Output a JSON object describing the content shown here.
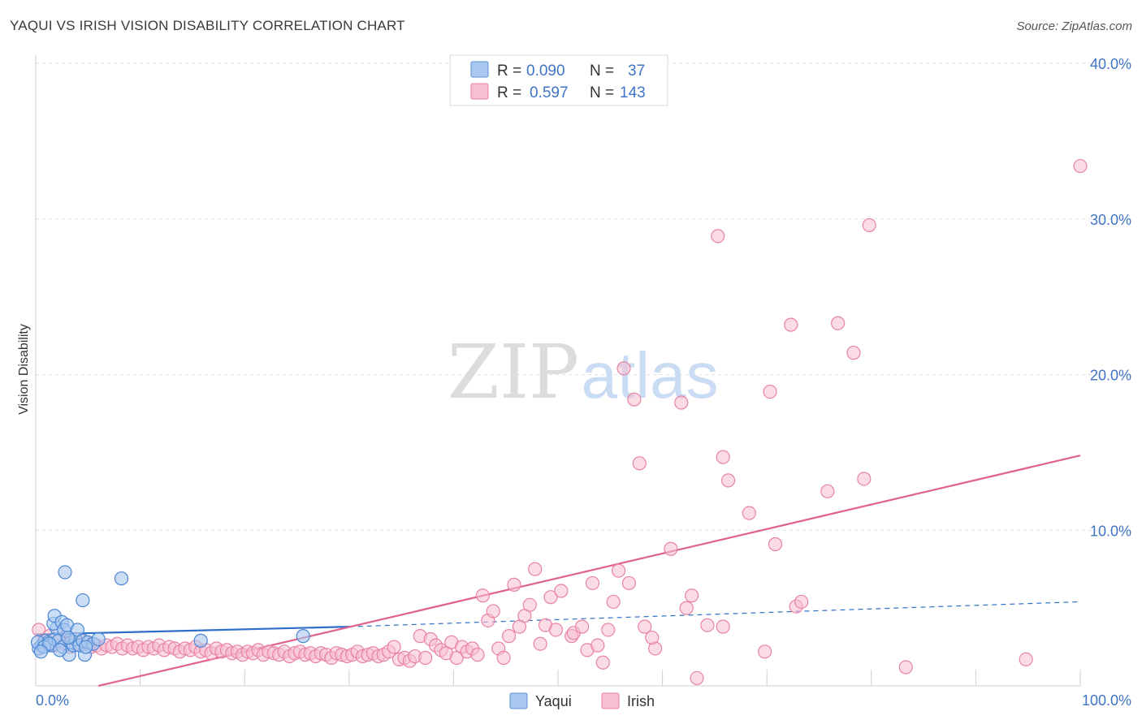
{
  "title": "YAQUI VS IRISH VISION DISABILITY CORRELATION CHART",
  "source": "Source: ZipAtlas.com",
  "watermark": {
    "zip": "ZIP",
    "atlas": "atlas"
  },
  "legend_top": {
    "rows": [
      {
        "r_label": "R =",
        "r_value": "0.090",
        "n_label": "N =",
        "n_value": "37",
        "color": "#a9c8ef",
        "stroke": "#5b8fd6"
      },
      {
        "r_label": "R =",
        "r_value": "0.597",
        "n_label": "N =",
        "n_value": "143",
        "color": "#f7bfcf",
        "stroke": "#e87fa0"
      }
    ]
  },
  "colors": {
    "yaqui_fill": "#a9c8ef",
    "yaqui_stroke": "#4a86d4",
    "yaqui_line": "#2f6fca",
    "irish_fill": "#f7bfcf",
    "irish_stroke": "#e882a3",
    "irish_line": "#e0628b",
    "tick_label": "#3f74c6",
    "grid": "#e2e2e2"
  },
  "chart_data": {
    "type": "scatter",
    "title": "YAQUI VS IRISH VISION DISABILITY CORRELATION CHART",
    "xlabel": "",
    "ylabel": "Vision Disability",
    "xlim": [
      0,
      100
    ],
    "ylim": [
      0,
      40
    ],
    "x_tick_labels": [
      "0.0%",
      "100.0%"
    ],
    "y_ticks": [
      10,
      20,
      30,
      40
    ],
    "y_tick_labels": [
      "10.0%",
      "20.0%",
      "30.0%",
      "40.0%"
    ],
    "grid": true,
    "legend_position": "bottom-center",
    "series": [
      {
        "name": "Yaqui",
        "r": 0.09,
        "n": 37,
        "trend": {
          "x0": 0,
          "y0": 3.3,
          "x_solid_end": 30,
          "y_solid_end": 3.8,
          "x1": 100,
          "y1": 5.4
        },
        "points": [
          [
            0.3,
            2.4
          ],
          [
            0.6,
            2.6
          ],
          [
            0.9,
            2.9
          ],
          [
            1.2,
            2.8
          ],
          [
            1.5,
            2.6
          ],
          [
            1.8,
            3.0
          ],
          [
            2.0,
            3.7
          ],
          [
            2.2,
            2.9
          ],
          [
            1.7,
            4.0
          ],
          [
            1.8,
            4.5
          ],
          [
            2.5,
            4.1
          ],
          [
            2.7,
            3.6
          ],
          [
            2.6,
            2.5
          ],
          [
            3.0,
            3.9
          ],
          [
            3.2,
            2.0
          ],
          [
            3.4,
            2.8
          ],
          [
            3.6,
            2.6
          ],
          [
            3.8,
            3.0
          ],
          [
            4.0,
            3.6
          ],
          [
            4.2,
            2.6
          ],
          [
            4.5,
            2.9
          ],
          [
            4.7,
            2.0
          ],
          [
            4.5,
            5.5
          ],
          [
            5.0,
            2.8
          ],
          [
            5.5,
            2.7
          ],
          [
            6.0,
            3.0
          ],
          [
            2.8,
            7.3
          ],
          [
            8.2,
            6.9
          ],
          [
            15.8,
            2.9
          ],
          [
            25.6,
            3.2
          ],
          [
            0.2,
            2.8
          ],
          [
            0.8,
            2.5
          ],
          [
            1.3,
            2.7
          ],
          [
            2.3,
            2.3
          ],
          [
            3.1,
            3.1
          ],
          [
            4.8,
            2.5
          ],
          [
            0.5,
            2.2
          ]
        ]
      },
      {
        "name": "Irish",
        "r": 0.597,
        "n": 143,
        "trend": {
          "x0": 6,
          "y0": 0,
          "x1": 100,
          "y1": 14.8
        },
        "points": [
          [
            0.3,
            3.6
          ],
          [
            0.8,
            2.9
          ],
          [
            1.3,
            3.2
          ],
          [
            1.8,
            2.6
          ],
          [
            2.3,
            3.0
          ],
          [
            2.8,
            2.7
          ],
          [
            3.3,
            2.5
          ],
          [
            3.8,
            3.0
          ],
          [
            4.3,
            2.6
          ],
          [
            4.8,
            2.8
          ],
          [
            5.3,
            2.5
          ],
          [
            5.8,
            2.6
          ],
          [
            6.3,
            2.4
          ],
          [
            6.8,
            2.6
          ],
          [
            7.3,
            2.5
          ],
          [
            7.8,
            2.7
          ],
          [
            8.3,
            2.4
          ],
          [
            8.8,
            2.6
          ],
          [
            9.3,
            2.4
          ],
          [
            9.8,
            2.5
          ],
          [
            10.3,
            2.3
          ],
          [
            10.8,
            2.5
          ],
          [
            11.3,
            2.4
          ],
          [
            11.8,
            2.6
          ],
          [
            12.3,
            2.3
          ],
          [
            12.8,
            2.5
          ],
          [
            13.3,
            2.4
          ],
          [
            13.8,
            2.2
          ],
          [
            14.3,
            2.4
          ],
          [
            14.8,
            2.3
          ],
          [
            15.3,
            2.5
          ],
          [
            15.8,
            2.2
          ],
          [
            16.3,
            2.3
          ],
          [
            16.8,
            2.1
          ],
          [
            17.3,
            2.4
          ],
          [
            17.8,
            2.2
          ],
          [
            18.3,
            2.3
          ],
          [
            18.8,
            2.1
          ],
          [
            19.3,
            2.2
          ],
          [
            19.8,
            2.0
          ],
          [
            20.3,
            2.2
          ],
          [
            20.8,
            2.1
          ],
          [
            21.3,
            2.3
          ],
          [
            21.8,
            2.0
          ],
          [
            22.3,
            2.2
          ],
          [
            22.8,
            2.1
          ],
          [
            23.3,
            2.0
          ],
          [
            23.8,
            2.2
          ],
          [
            24.3,
            1.9
          ],
          [
            24.8,
            2.1
          ],
          [
            25.3,
            2.2
          ],
          [
            25.8,
            2.0
          ],
          [
            26.3,
            2.1
          ],
          [
            26.8,
            1.9
          ],
          [
            27.3,
            2.1
          ],
          [
            27.8,
            2.0
          ],
          [
            28.3,
            1.8
          ],
          [
            28.8,
            2.1
          ],
          [
            29.3,
            2.0
          ],
          [
            29.8,
            1.9
          ],
          [
            30.3,
            2.0
          ],
          [
            30.8,
            2.2
          ],
          [
            31.3,
            1.9
          ],
          [
            31.8,
            2.0
          ],
          [
            32.3,
            2.1
          ],
          [
            32.8,
            1.9
          ],
          [
            33.3,
            2.0
          ],
          [
            33.8,
            2.2
          ],
          [
            34.3,
            2.5
          ],
          [
            34.8,
            1.7
          ],
          [
            35.3,
            1.8
          ],
          [
            35.8,
            1.6
          ],
          [
            36.3,
            1.9
          ],
          [
            36.8,
            3.2
          ],
          [
            37.3,
            1.8
          ],
          [
            37.8,
            3.0
          ],
          [
            38.3,
            2.6
          ],
          [
            38.8,
            2.3
          ],
          [
            39.3,
            2.1
          ],
          [
            39.8,
            2.8
          ],
          [
            40.3,
            1.8
          ],
          [
            40.8,
            2.5
          ],
          [
            41.3,
            2.2
          ],
          [
            41.8,
            2.4
          ],
          [
            42.3,
            2.0
          ],
          [
            42.8,
            5.8
          ],
          [
            43.3,
            4.2
          ],
          [
            43.8,
            4.8
          ],
          [
            44.3,
            2.4
          ],
          [
            44.8,
            1.8
          ],
          [
            45.3,
            3.2
          ],
          [
            45.8,
            6.5
          ],
          [
            46.3,
            3.8
          ],
          [
            46.8,
            4.5
          ],
          [
            47.3,
            5.2
          ],
          [
            47.8,
            7.5
          ],
          [
            48.3,
            2.7
          ],
          [
            48.8,
            3.9
          ],
          [
            49.3,
            5.7
          ],
          [
            49.8,
            3.6
          ],
          [
            50.3,
            6.1
          ],
          [
            51.3,
            3.2
          ],
          [
            51.5,
            3.4
          ],
          [
            52.3,
            3.8
          ],
          [
            52.8,
            2.3
          ],
          [
            53.3,
            6.6
          ],
          [
            53.8,
            2.6
          ],
          [
            54.3,
            1.5
          ],
          [
            54.8,
            3.6
          ],
          [
            55.3,
            5.4
          ],
          [
            55.8,
            7.4
          ],
          [
            56.3,
            20.4
          ],
          [
            56.8,
            6.6
          ],
          [
            57.3,
            18.4
          ],
          [
            57.8,
            14.3
          ],
          [
            58.3,
            3.8
          ],
          [
            59.3,
            2.4
          ],
          [
            60.8,
            8.8
          ],
          [
            61.8,
            18.2
          ],
          [
            62.3,
            5.0
          ],
          [
            62.8,
            5.8
          ],
          [
            63.3,
            0.5
          ],
          [
            64.3,
            3.9
          ],
          [
            65.3,
            28.9
          ],
          [
            65.8,
            14.7
          ],
          [
            66.3,
            13.2
          ],
          [
            65.8,
            3.8
          ],
          [
            68.3,
            11.1
          ],
          [
            69.8,
            2.2
          ],
          [
            70.3,
            18.9
          ],
          [
            70.8,
            9.1
          ],
          [
            72.3,
            23.2
          ],
          [
            72.8,
            5.1
          ],
          [
            73.3,
            5.4
          ],
          [
            75.8,
            12.5
          ],
          [
            76.8,
            23.3
          ],
          [
            78.3,
            21.4
          ],
          [
            79.3,
            13.3
          ],
          [
            79.8,
            29.6
          ],
          [
            83.3,
            1.2
          ],
          [
            94.8,
            1.7
          ],
          [
            100.0,
            33.4
          ],
          [
            59.0,
            3.1
          ]
        ]
      }
    ]
  },
  "legend_bottom": {
    "items": [
      {
        "label": "Yaqui"
      },
      {
        "label": "Irish"
      }
    ]
  }
}
